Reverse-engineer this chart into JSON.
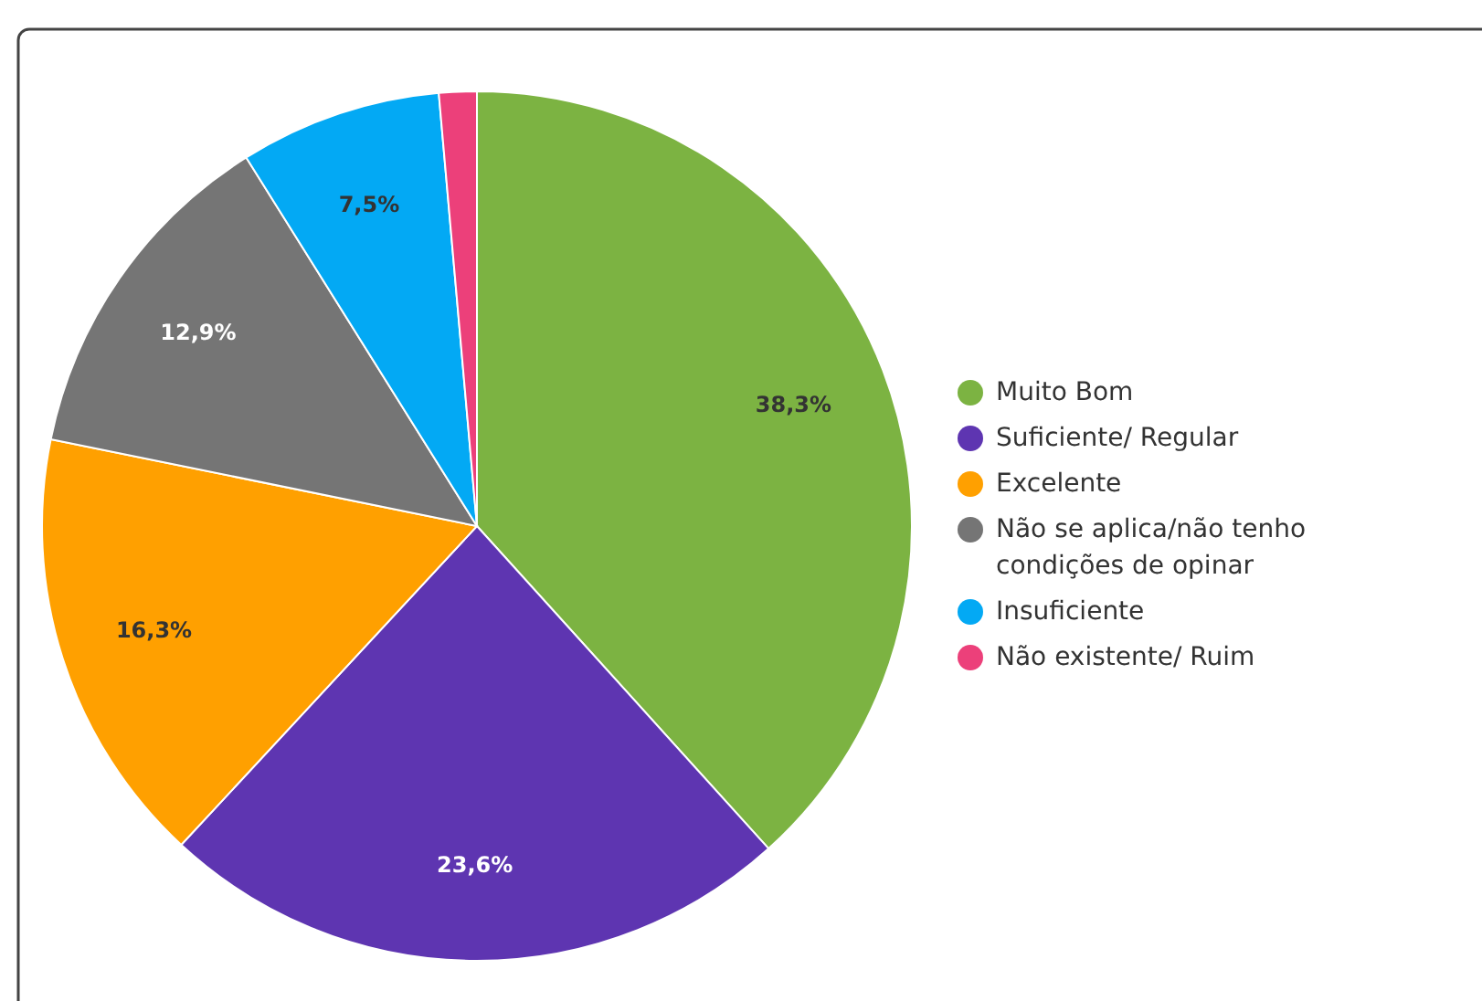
{
  "chart_data": {
    "type": "pie",
    "categories": [
      "Muito Bom",
      "Suficiente/ Regular",
      "Excelente",
      "Não se aplica/não tenho condições de opinar",
      "Insuficiente",
      "Não existente/ Ruim"
    ],
    "values": [
      38.3,
      23.6,
      16.3,
      12.9,
      7.5,
      1.4
    ],
    "colors": [
      "#7cb342",
      "#5e35b1",
      "#ffa000",
      "#757575",
      "#03a9f4",
      "#ec407a"
    ],
    "value_labels": [
      "38,3%",
      "23,6%",
      "16,3%",
      "12,9%",
      "7,5%",
      null
    ],
    "legend": "right"
  }
}
